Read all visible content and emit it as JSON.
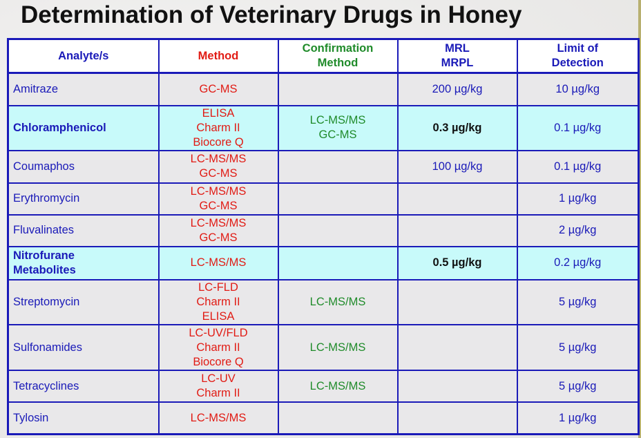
{
  "title": "Determination of Veterinary Drugs in Honey",
  "columns": {
    "analyte": "Analyte/s",
    "method": "Method",
    "confirmation_line1": "Confirmation",
    "confirmation_line2": "Method",
    "mrl_line1": "MRL",
    "mrl_line2": "MRPL",
    "lod_line1": "Limit of",
    "lod_line2": "Detection"
  },
  "rows": [
    {
      "analyte": "Amitraze",
      "method": "GC-MS",
      "confirmation": "",
      "mrl": "200 µg/kg",
      "lod": "10 µg/kg",
      "highlight": false
    },
    {
      "analyte": "Chloramphenicol",
      "method": "ELISA\nCharm II\nBiocore Q",
      "confirmation": "LC-MS/MS\nGC-MS",
      "mrl": "0.3 µg/kg",
      "lod": "0.1 µg/kg",
      "highlight": true
    },
    {
      "analyte": "Coumaphos",
      "method": "LC-MS/MS\nGC-MS",
      "confirmation": "",
      "mrl": "100 µg/kg",
      "lod": "0.1 µg/kg",
      "highlight": false
    },
    {
      "analyte": "Erythromycin",
      "method": "LC-MS/MS\nGC-MS",
      "confirmation": "",
      "mrl": "",
      "lod": "1 µg/kg",
      "highlight": false
    },
    {
      "analyte": "Fluvalinates",
      "method": "LC-MS/MS\nGC-MS",
      "confirmation": "",
      "mrl": "",
      "lod": "2 µg/kg",
      "highlight": false
    },
    {
      "analyte": "Nitrofurane\nMetabolites",
      "method": "LC-MS/MS",
      "confirmation": "",
      "mrl": "0.5 µg/kg",
      "lod": "0.2 µg/kg",
      "highlight": true
    },
    {
      "analyte": "Streptomycin",
      "method": "LC-FLD\nCharm II\nELISA",
      "confirmation": "LC-MS/MS",
      "mrl": "",
      "lod": "5 µg/kg",
      "highlight": false
    },
    {
      "analyte": "Sulfonamides",
      "method": "LC-UV/FLD\nCharm II\nBiocore Q",
      "confirmation": "LC-MS/MS",
      "mrl": "",
      "lod": "5 µg/kg",
      "highlight": false
    },
    {
      "analyte": "Tetracyclines",
      "method": "LC-UV\nCharm II",
      "confirmation": "LC-MS/MS",
      "mrl": "",
      "lod": "5 µg/kg",
      "highlight": false
    },
    {
      "analyte": "Tylosin",
      "method": "LC-MS/MS",
      "confirmation": "",
      "mrl": "",
      "lod": "1 µg/kg",
      "highlight": false
    }
  ],
  "colors": {
    "border": "#1a1ab8",
    "analyte_text": "#1a1ab8",
    "method_text": "#e11b14",
    "confirmation_text": "#1f8b2a",
    "highlight_row": "#c8fafa",
    "normal_row": "#e9e8ea"
  }
}
